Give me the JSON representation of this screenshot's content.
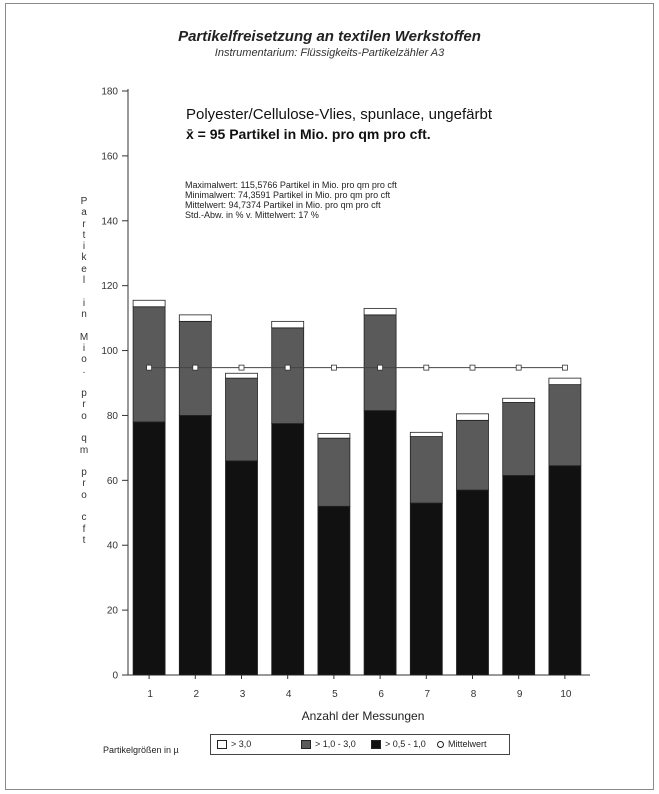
{
  "header": {
    "title": "Partikelfreisetzung an textilen Werkstoffen",
    "subtitle": "Instrumentarium: Flüssigkeits-Partikelzähler A3"
  },
  "material": {
    "line1": "Polyester/Cellulose-Vlies, spunlace, ungefärbt",
    "line2": "x̄ = 95 Partikel in Mio. pro qm pro cft."
  },
  "stats": [
    "Maximalwert: 115,5766 Partikel in Mio. pro qm pro cft",
    "Minimalwert: 74,3591 Partikel in Mio. pro qm pro cft",
    "Mittelwert: 94,7374 Partikel in Mio. pro qm pro cft",
    "Std.-Abw. in % v. Mittelwert: 17 %"
  ],
  "legend": {
    "title": "Partikelgrößen in µ",
    "items": [
      "> 3,0",
      "> 1,0 - 3,0",
      "> 0,5 - 1,0",
      "Mittelwert"
    ]
  },
  "colors": {
    "small": "#111111",
    "medium": "#5a5a5a",
    "large": "#ffffff",
    "mean": "#444444"
  },
  "chart_data": {
    "type": "bar",
    "stacked": true,
    "title": "Partikelfreisetzung an textilen Werkstoffen",
    "xlabel": "Anzahl der Messungen",
    "ylabel": "Partikel in Mio. pro qm pro cft",
    "ylim": [
      0,
      180
    ],
    "yticks": [
      0,
      20,
      40,
      60,
      80,
      100,
      120,
      140,
      160,
      180
    ],
    "categories": [
      "1",
      "2",
      "3",
      "4",
      "5",
      "6",
      "7",
      "8",
      "9",
      "10"
    ],
    "series": [
      {
        "name": "> 0,5 - 1,0",
        "values": [
          78,
          80,
          66,
          77.5,
          52,
          81.5,
          53,
          57,
          61.5,
          64.5
        ]
      },
      {
        "name": "> 1,0 - 3,0",
        "values": [
          35.5,
          29,
          25.5,
          29.5,
          21,
          29.5,
          20.5,
          21.5,
          22.5,
          25
        ]
      },
      {
        "name": "> 3,0",
        "values": [
          2,
          2,
          1.5,
          2,
          1.4,
          2,
          1.3,
          2,
          1.3,
          2
        ]
      }
    ],
    "mean": {
      "name": "Mittelwert",
      "value": 94.7374
    },
    "grid": false,
    "legend_position": "bottom"
  }
}
